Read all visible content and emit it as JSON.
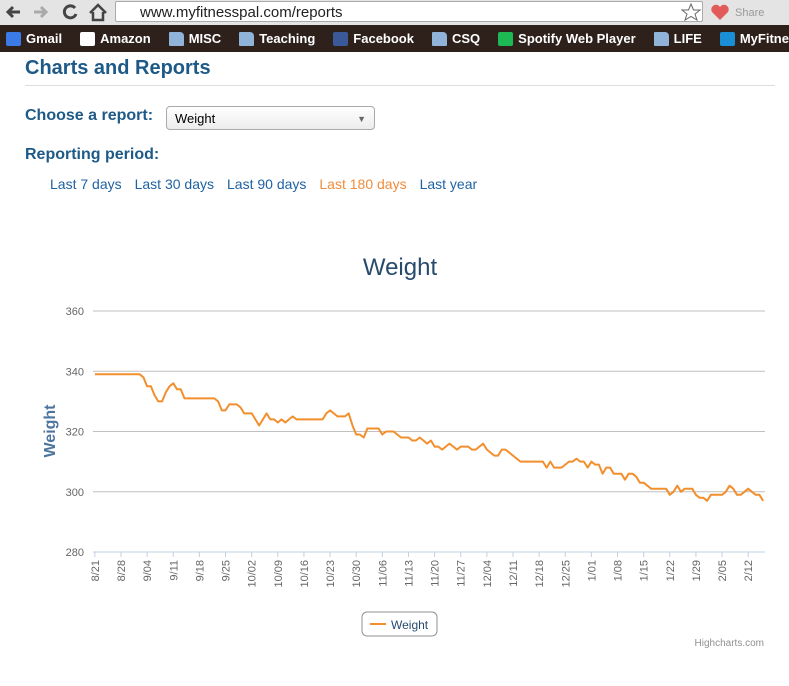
{
  "browser": {
    "url": "www.myfitnesspal.com/reports",
    "share": "Share",
    "bookmarks": [
      "Gmail",
      "Amazon",
      "MISC",
      "Teaching",
      "Facebook",
      "CSQ",
      "Spotify Web Player",
      "LIFE",
      "MyFitnessPal"
    ]
  },
  "page": {
    "title": "Charts and Reports",
    "report_label": "Choose a report:",
    "report_selected": "Weight",
    "period_label": "Reporting period:",
    "periods": [
      "Last 7 days",
      "Last 30 days",
      "Last 90 days",
      "Last 180 days",
      "Last year"
    ]
  },
  "chart_data": {
    "type": "line",
    "title": "Weight",
    "y_label": "Weight",
    "credit": "Highcharts.com",
    "ylim": [
      280,
      360
    ],
    "yticks": [
      280,
      300,
      320,
      340,
      360
    ],
    "grid": true,
    "legend": "bottom",
    "categories": [
      "8/21",
      null,
      null,
      null,
      null,
      null,
      null,
      "8/28",
      null,
      null,
      null,
      null,
      null,
      null,
      "9/04",
      null,
      null,
      null,
      null,
      null,
      null,
      "9/11",
      null,
      null,
      null,
      null,
      null,
      null,
      "9/18",
      null,
      null,
      null,
      null,
      null,
      null,
      "9/25",
      null,
      null,
      null,
      null,
      null,
      null,
      "10/02",
      null,
      null,
      null,
      null,
      null,
      null,
      "10/09",
      null,
      null,
      null,
      null,
      null,
      null,
      "10/16",
      null,
      null,
      null,
      null,
      null,
      null,
      "10/23",
      null,
      null,
      null,
      null,
      null,
      null,
      "10/30",
      null,
      null,
      null,
      null,
      null,
      null,
      "11/06",
      null,
      null,
      null,
      null,
      null,
      null,
      "11/13",
      null,
      null,
      null,
      null,
      null,
      null,
      "11/20",
      null,
      null,
      null,
      null,
      null,
      null,
      "11/27",
      null,
      null,
      null,
      null,
      null,
      null,
      "12/04",
      null,
      null,
      null,
      null,
      null,
      null,
      "12/11",
      null,
      null,
      null,
      null,
      null,
      null,
      "12/18",
      null,
      null,
      null,
      null,
      null,
      null,
      "12/25",
      null,
      null,
      null,
      null,
      null,
      null,
      "1/01",
      null,
      null,
      null,
      null,
      null,
      null,
      "1/08",
      null,
      null,
      null,
      null,
      null,
      null,
      "1/15",
      null,
      null,
      null,
      null,
      null,
      null,
      "1/22",
      null,
      null,
      null,
      null,
      null,
      null,
      "1/29",
      null,
      null,
      null,
      null,
      null,
      null,
      "2/05",
      null,
      null,
      null,
      null,
      null,
      null,
      "2/12",
      null,
      null,
      null,
      null
    ],
    "series": [
      {
        "name": "Weight",
        "color": "#f28f2c",
        "values": [
          339,
          339,
          339,
          339,
          339,
          339,
          339,
          339,
          339,
          339,
          339,
          339,
          339,
          338,
          335,
          335,
          332,
          330,
          330,
          333,
          335,
          336,
          334,
          334,
          331,
          331,
          331,
          331,
          331,
          331,
          331,
          331,
          331,
          330,
          327,
          327,
          329,
          329,
          329,
          328,
          326,
          326,
          326,
          324,
          322,
          324,
          326,
          324,
          324,
          323,
          324,
          323,
          324,
          325,
          324,
          324,
          324,
          324,
          324,
          324,
          324,
          324,
          326,
          327,
          326,
          325,
          325,
          325,
          326,
          322,
          319,
          319,
          318,
          321,
          321,
          321,
          321,
          319,
          320,
          320,
          320,
          319,
          318,
          318,
          318,
          317,
          317,
          318,
          317,
          316,
          317,
          315,
          315,
          314,
          315,
          316,
          315,
          314,
          315,
          315,
          315,
          314,
          314,
          315,
          316,
          314,
          313,
          312,
          312,
          314,
          314,
          313,
          312,
          311,
          310,
          310,
          310,
          310,
          310,
          310,
          310,
          308,
          310,
          308,
          308,
          308,
          309,
          310,
          310,
          311,
          310,
          310,
          308,
          310,
          309,
          309,
          306,
          308,
          308,
          306,
          306,
          306,
          304,
          306,
          306,
          305,
          303,
          303,
          302,
          301,
          301,
          301,
          301,
          301,
          299,
          300,
          302,
          300,
          301,
          301,
          301,
          299,
          298,
          298,
          297,
          299,
          299,
          299,
          299,
          300,
          302,
          301,
          299,
          299,
          300,
          301,
          300,
          299,
          299,
          297
        ]
      }
    ]
  }
}
